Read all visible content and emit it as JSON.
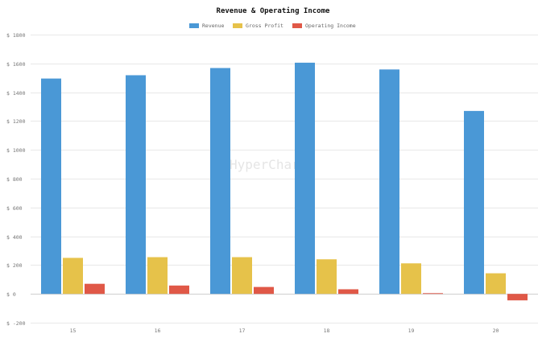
{
  "chart_data": {
    "type": "bar",
    "title": "Revenue & Operating Income",
    "categories": [
      "15",
      "16",
      "17",
      "18",
      "19",
      "20"
    ],
    "series": [
      {
        "name": "Revenue",
        "values": [
          1495,
          1518,
          1568,
          1605,
          1558,
          1270
        ],
        "color": "#4a98d6"
      },
      {
        "name": "Gross Profit",
        "values": [
          250,
          255,
          255,
          240,
          212,
          143
        ],
        "color": "#e6c24a"
      },
      {
        "name": "Operating Income",
        "values": [
          70,
          58,
          48,
          32,
          5,
          -45
        ],
        "color": "#e05847"
      }
    ],
    "ylim": [
      -200,
      1800
    ],
    "yticks": [
      -200,
      0,
      200,
      400,
      600,
      800,
      1000,
      1200,
      1400,
      1600,
      1800
    ],
    "ytick_prefix": "$ ",
    "legend_position": "top-center",
    "grid": true
  },
  "watermark": "HyperCharts"
}
